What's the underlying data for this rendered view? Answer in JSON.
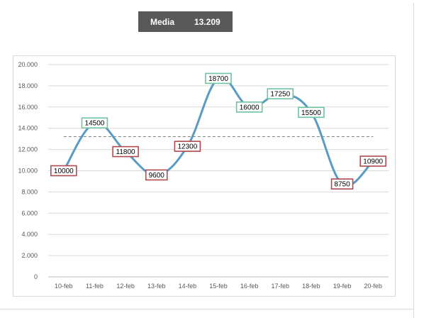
{
  "header": {
    "label": "Media",
    "value": "13.209"
  },
  "chart_data": {
    "type": "line",
    "smooth": true,
    "categories": [
      "10-feb",
      "11-feb",
      "12-feb",
      "13-feb",
      "14-feb",
      "15-feb",
      "16-feb",
      "17-feb",
      "18-feb",
      "19-feb",
      "20-feb"
    ],
    "series": [
      {
        "values": [
          10000,
          14500,
          11800,
          9600,
          12300,
          18700,
          16000,
          17250,
          15500,
          8750,
          10900
        ],
        "color": "#5a9bc5"
      }
    ],
    "data_labels": [
      "10000",
      "14500",
      "11800",
      "9600",
      "12300",
      "18700",
      "16000",
      "17250",
      "15500",
      "8750",
      "10900"
    ],
    "label_border_colors": {
      "above_average": "#6ec3a0",
      "below_average": "#b04a4f"
    },
    "average": 13209,
    "average_line_color": "#808080",
    "y_ticks": [
      "0",
      "2.000",
      "4.000",
      "6.000",
      "8.000",
      "10.000",
      "12.000",
      "14.000",
      "16.000",
      "18.000",
      "20.000"
    ],
    "ylim": [
      0,
      20000
    ],
    "grid": true,
    "xlabel": "",
    "ylabel": "",
    "title": ""
  }
}
